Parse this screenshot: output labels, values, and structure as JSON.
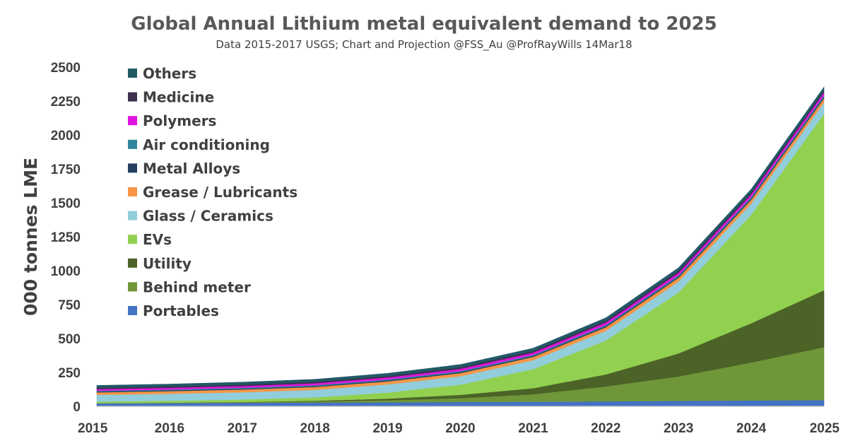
{
  "chart_data": {
    "type": "area",
    "stacked": true,
    "title": "Global Annual Lithium metal equivalent demand to 2025",
    "subtitle": "Data 2015-2017 USGS; Chart and Projection @FSS_Au  @ProfRayWills 14Mar18",
    "xlabel": "",
    "ylabel": "000 tonnes LME",
    "ylim": [
      0,
      2500
    ],
    "yticks": [
      0,
      250,
      500,
      750,
      1000,
      1250,
      1500,
      1750,
      2000,
      2250,
      2500
    ],
    "categories": [
      "2015",
      "2016",
      "2017",
      "2018",
      "2019",
      "2020",
      "2021",
      "2022",
      "2023",
      "2024",
      "2025"
    ],
    "legend_position": "top-left",
    "series": [
      {
        "name": "Portables",
        "color": "#4472C4",
        "values": [
          22,
          24,
          26,
          28,
          30,
          32,
          34,
          37,
          40,
          43,
          46
        ]
      },
      {
        "name": "Behind meter",
        "color": "#70963A",
        "values": [
          1,
          2,
          4,
          8,
          15,
          28,
          55,
          110,
          180,
          280,
          390
        ]
      },
      {
        "name": "Utility",
        "color": "#4B6327",
        "values": [
          0,
          1,
          2,
          5,
          12,
          25,
          45,
          88,
          170,
          290,
          420
        ]
      },
      {
        "name": "EVs",
        "color": "#92D050",
        "values": [
          12,
          14,
          18,
          25,
          45,
          75,
          140,
          250,
          450,
          800,
          1300
        ]
      },
      {
        "name": "Glass / Ceramics",
        "color": "#92CDDC",
        "values": [
          50,
          52,
          54,
          56,
          60,
          62,
          66,
          72,
          80,
          82,
          85
        ]
      },
      {
        "name": "Grease / Lubricants",
        "color": "#F79646",
        "values": [
          18,
          19,
          20,
          21,
          22,
          23,
          24,
          26,
          28,
          29,
          30
        ]
      },
      {
        "name": "Metal Alloys",
        "color": "#243F60",
        "values": [
          6,
          6,
          6,
          6,
          7,
          7,
          7,
          8,
          8,
          9,
          10
        ]
      },
      {
        "name": "Air conditioning",
        "color": "#31859C",
        "values": [
          6,
          6,
          7,
          7,
          7,
          8,
          8,
          9,
          10,
          11,
          12
        ]
      },
      {
        "name": "Polymers",
        "color": "#E015E0",
        "values": [
          12,
          13,
          13,
          14,
          15,
          16,
          17,
          18,
          19,
          20,
          21
        ]
      },
      {
        "name": "Medicine",
        "color": "#3F3151",
        "values": [
          10,
          10,
          10,
          11,
          11,
          12,
          12,
          13,
          14,
          14,
          15
        ]
      },
      {
        "name": "Others",
        "color": "#215967",
        "values": [
          17,
          17,
          18,
          18,
          19,
          20,
          20,
          21,
          22,
          23,
          24
        ]
      }
    ]
  }
}
